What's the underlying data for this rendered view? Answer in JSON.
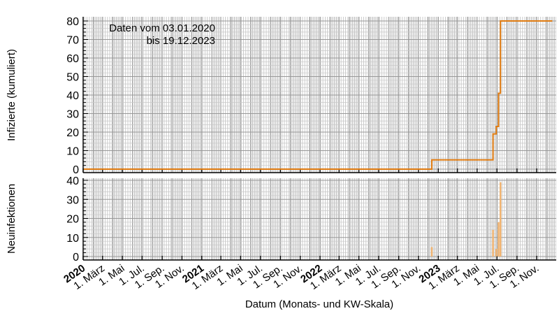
{
  "chart_data": [
    {
      "type": "line",
      "step": true,
      "ylabel": "Infizierte (kumuliert)",
      "ylim": [
        0,
        80
      ],
      "yticks": [
        0,
        10,
        20,
        30,
        40,
        50,
        60,
        70,
        80
      ],
      "annotation": [
        "Daten vom 03.01.2020",
        "bis 19.12.2023"
      ],
      "color": "#e07b10",
      "x": [
        "2020-01-03",
        "2022-12-12",
        "2023-06-19",
        "2023-06-29",
        "2023-07-06",
        "2023-07-12",
        "2023-12-19"
      ],
      "values": [
        0,
        5,
        19,
        23,
        41,
        80,
        80
      ]
    },
    {
      "type": "bar",
      "ylabel": "Neuinfektionen",
      "ylim": [
        0,
        40
      ],
      "yticks": [
        0,
        10,
        20,
        30,
        40
      ],
      "color": "#f0b26e",
      "x": [
        "2022-12-12",
        "2023-06-19",
        "2023-06-29",
        "2023-07-06",
        "2023-07-12"
      ],
      "values": [
        5,
        14,
        4,
        18,
        39
      ]
    }
  ],
  "xaxis": {
    "xlabel": "Datum (Monats- und KW-Skala)",
    "xlim": [
      "2020-01-01",
      "2023-12-31"
    ],
    "tick_labels": [
      {
        "date": "2020-01-01",
        "label": "2020",
        "bold": true
      },
      {
        "date": "2020-03-01",
        "label": "1. März"
      },
      {
        "date": "2020-05-01",
        "label": "1. Mai"
      },
      {
        "date": "2020-07-01",
        "label": "1. Jul."
      },
      {
        "date": "2020-09-01",
        "label": "1. Sep."
      },
      {
        "date": "2020-11-01",
        "label": "1. Nov."
      },
      {
        "date": "2021-01-01",
        "label": "2021",
        "bold": true
      },
      {
        "date": "2021-03-01",
        "label": "1. März"
      },
      {
        "date": "2021-05-01",
        "label": "1. Mai"
      },
      {
        "date": "2021-07-01",
        "label": "1. Jul."
      },
      {
        "date": "2021-09-01",
        "label": "1. Sep."
      },
      {
        "date": "2021-11-01",
        "label": "1. Nov."
      },
      {
        "date": "2022-01-01",
        "label": "2022",
        "bold": true
      },
      {
        "date": "2022-03-01",
        "label": "1. März"
      },
      {
        "date": "2022-05-01",
        "label": "1. Mai"
      },
      {
        "date": "2022-07-01",
        "label": "1. Jul."
      },
      {
        "date": "2022-09-01",
        "label": "1. Sep."
      },
      {
        "date": "2022-11-01",
        "label": "1. Nov."
      },
      {
        "date": "2023-01-01",
        "label": "2023",
        "bold": true
      },
      {
        "date": "2023-03-01",
        "label": "1. März"
      },
      {
        "date": "2023-05-01",
        "label": "1. Mai"
      },
      {
        "date": "2023-07-01",
        "label": "1. Jul."
      },
      {
        "date": "2023-09-01",
        "label": "1. Sep."
      },
      {
        "date": "2023-11-01",
        "label": "1. Nov."
      }
    ]
  }
}
